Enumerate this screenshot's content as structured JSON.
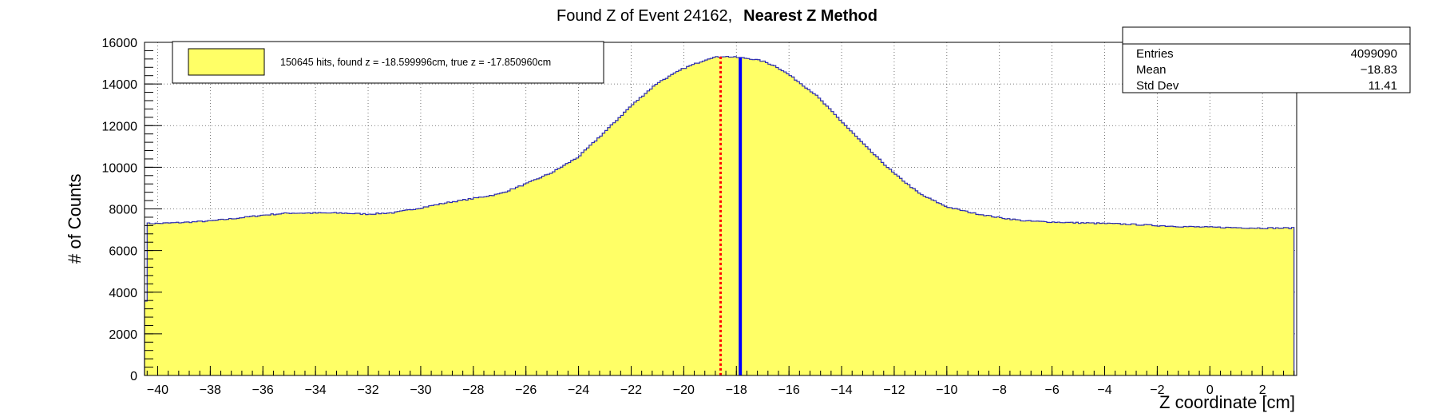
{
  "chart_data": {
    "type": "histogram",
    "title_regular": "Found Z of Event 24162,",
    "title_bold": "Nearest Z Method",
    "xlabel": "Z coordinate [cm]",
    "ylabel": "# of Counts",
    "xlim": [
      -40.5,
      3.3
    ],
    "ylim": [
      0,
      16000
    ],
    "x_ticks": [
      -40,
      -38,
      -36,
      -34,
      -32,
      -30,
      -28,
      -26,
      -24,
      -22,
      -20,
      -18,
      -16,
      -14,
      -12,
      -10,
      -8,
      -6,
      -4,
      -2,
      0,
      2
    ],
    "x_tick_labels": [
      "−40",
      "−38",
      "−36",
      "−34",
      "−32",
      "−30",
      "−28",
      "−26",
      "−24",
      "−22",
      "−20",
      "−18",
      "−16",
      "−14",
      "−12",
      "−10",
      "−8",
      "−6",
      "−4",
      "−2",
      "0",
      "2"
    ],
    "y_ticks": [
      0,
      2000,
      4000,
      6000,
      8000,
      10000,
      12000,
      14000,
      16000
    ],
    "y_tick_labels": [
      "0",
      "2000",
      "4000",
      "6000",
      "8000",
      "10000",
      "12000",
      "14000",
      "16000"
    ],
    "grid": true,
    "bin_width": 0.1,
    "x_start": -40.5,
    "x_end": 3.2,
    "histogram_profile": {
      "x": [
        -40.5,
        -40.0,
        -39.0,
        -38.0,
        -37.0,
        -36.0,
        -35.0,
        -34.0,
        -33.0,
        -32.0,
        -31.0,
        -30.0,
        -29.0,
        -28.0,
        -27.0,
        -26.0,
        -25.0,
        -24.0,
        -23.0,
        -22.0,
        -21.0,
        -20.0,
        -19.0,
        -18.5,
        -18.0,
        -17.5,
        -17.0,
        -16.5,
        -16.0,
        -15.0,
        -14.0,
        -13.0,
        -12.0,
        -11.0,
        -10.0,
        -9.0,
        -8.0,
        -7.0,
        -6.0,
        -5.0,
        -4.0,
        -3.0,
        -2.0,
        -1.0,
        0.0,
        1.0,
        2.0,
        3.0,
        3.2
      ],
      "y": [
        7300,
        7300,
        7350,
        7420,
        7550,
        7700,
        7800,
        7800,
        7800,
        7750,
        7820,
        8050,
        8300,
        8500,
        8720,
        9200,
        9750,
        10500,
        11700,
        12950,
        14050,
        14750,
        15250,
        15330,
        15280,
        15220,
        15100,
        14850,
        14450,
        13500,
        12200,
        10900,
        9700,
        8700,
        8100,
        7800,
        7580,
        7420,
        7370,
        7330,
        7300,
        7260,
        7200,
        7150,
        7120,
        7100,
        7080,
        7080,
        7080
      ]
    },
    "histogram_color": "#ffff66",
    "histogram_edge_color": "#2b2bb0",
    "found_z": -18.599996,
    "true_z": -17.85096,
    "found_z_line_color": "#ff0000",
    "true_z_line_color": "#0000ff",
    "legend": {
      "label": "150645 hits, found z = -18.599996cm, true z = -17.850960cm",
      "swatch_color": "#ffff66",
      "position": "top-left"
    },
    "stats_box": {
      "position": "top-right",
      "entries_label": "Entries",
      "entries_value": "4099090",
      "mean_label": "Mean",
      "mean_value": "−18.83",
      "stddev_label": "Std Dev",
      "stddev_value": "11.41"
    }
  }
}
